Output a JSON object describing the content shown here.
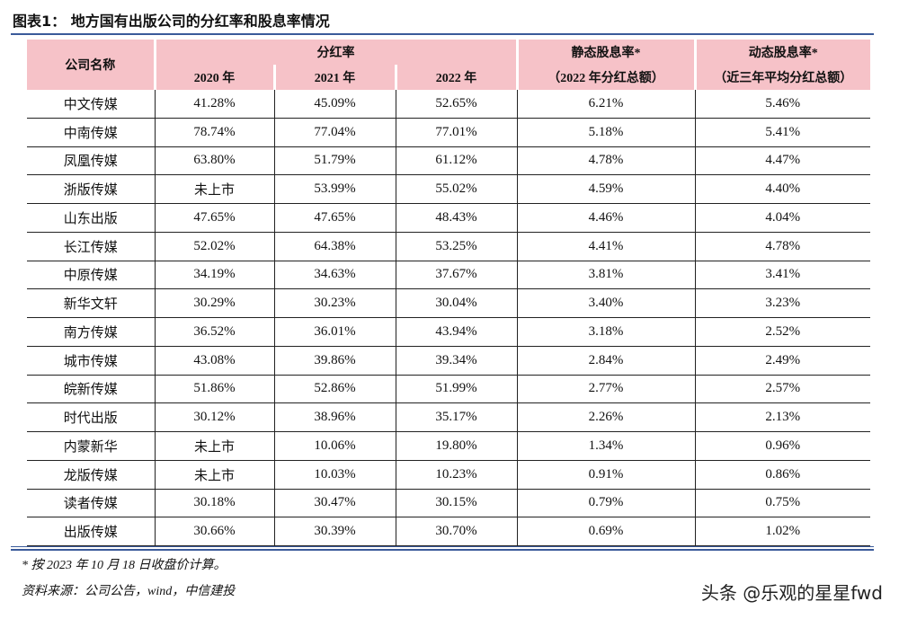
{
  "title": "图表1： 地方国有出版公司的分红率和股息率情况",
  "table": {
    "header": {
      "company": "公司名称",
      "dividend_rate": "分红率",
      "years": [
        "2020 年",
        "2021 年",
        "2022 年"
      ],
      "static_yield": [
        "静态股息率*",
        "（2022 年分红总额）"
      ],
      "dynamic_yield": [
        "动态股息率*",
        "（近三年平均分红总额）"
      ]
    },
    "rows": [
      [
        "中文传媒",
        "41.28%",
        "45.09%",
        "52.65%",
        "6.21%",
        "5.46%"
      ],
      [
        "中南传媒",
        "78.74%",
        "77.04%",
        "77.01%",
        "5.18%",
        "5.41%"
      ],
      [
        "凤凰传媒",
        "63.80%",
        "51.79%",
        "61.12%",
        "4.78%",
        "4.47%"
      ],
      [
        "浙版传媒",
        "未上市",
        "53.99%",
        "55.02%",
        "4.59%",
        "4.40%"
      ],
      [
        "山东出版",
        "47.65%",
        "47.65%",
        "48.43%",
        "4.46%",
        "4.04%"
      ],
      [
        "长江传媒",
        "52.02%",
        "64.38%",
        "53.25%",
        "4.41%",
        "4.78%"
      ],
      [
        "中原传媒",
        "34.19%",
        "34.63%",
        "37.67%",
        "3.81%",
        "3.41%"
      ],
      [
        "新华文轩",
        "30.29%",
        "30.23%",
        "30.04%",
        "3.40%",
        "3.23%"
      ],
      [
        "南方传媒",
        "36.52%",
        "36.01%",
        "43.94%",
        "3.18%",
        "2.52%"
      ],
      [
        "城市传媒",
        "43.08%",
        "39.86%",
        "39.34%",
        "2.84%",
        "2.49%"
      ],
      [
        "皖新传媒",
        "51.86%",
        "52.86%",
        "51.99%",
        "2.77%",
        "2.57%"
      ],
      [
        "时代出版",
        "30.12%",
        "38.96%",
        "35.17%",
        "2.26%",
        "2.13%"
      ],
      [
        "内蒙新华",
        "未上市",
        "10.06%",
        "19.80%",
        "1.34%",
        "0.96%"
      ],
      [
        "龙版传媒",
        "未上市",
        "10.03%",
        "10.23%",
        "0.91%",
        "0.86%"
      ],
      [
        "读者传媒",
        "30.18%",
        "30.47%",
        "30.15%",
        "0.79%",
        "0.75%"
      ],
      [
        "出版传媒",
        "30.66%",
        "30.39%",
        "30.70%",
        "0.69%",
        "1.02%"
      ]
    ]
  },
  "footnote": "* 按 2023 年 10 月 18 日收盘价计算。",
  "source": "资料来源：公司公告，wind，中信建投",
  "watermark": "头条 @乐观的星星fwd"
}
